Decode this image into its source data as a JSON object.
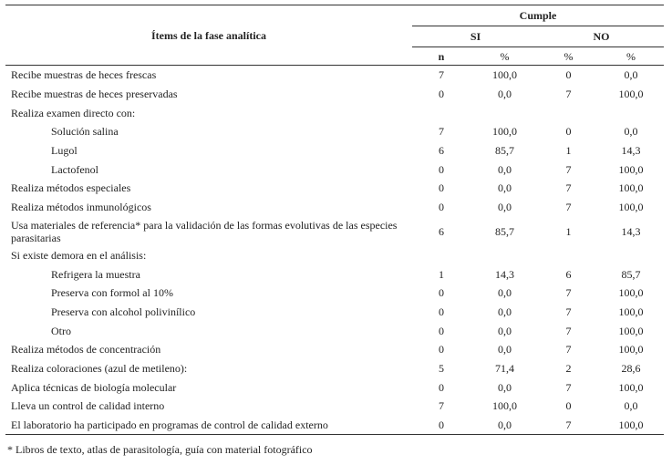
{
  "table": {
    "item_header": "Ítems de la fase analítica",
    "group_header": "Cumple",
    "si_label": "SI",
    "no_label": "NO",
    "units": [
      "n",
      "%",
      "%",
      "%"
    ],
    "rows": [
      {
        "label": "Recibe muestras de heces frescas",
        "indent": false,
        "values": [
          "7",
          "100,0",
          "0",
          "0,0"
        ]
      },
      {
        "label": "Recibe muestras de heces preservadas",
        "indent": false,
        "values": [
          "0",
          "0,0",
          "7",
          "100,0"
        ]
      },
      {
        "label": "Realiza examen directo con:",
        "indent": false,
        "values": [
          "",
          "",
          "",
          ""
        ]
      },
      {
        "label": "Solución salina",
        "indent": true,
        "values": [
          "7",
          "100,0",
          "0",
          "0,0"
        ]
      },
      {
        "label": "Lugol",
        "indent": true,
        "values": [
          "6",
          "85,7",
          "1",
          "14,3"
        ]
      },
      {
        "label": "Lactofenol",
        "indent": true,
        "values": [
          "0",
          "0,0",
          "7",
          "100,0"
        ]
      },
      {
        "label": "Realiza métodos especiales",
        "indent": false,
        "values": [
          "0",
          "0,0",
          "7",
          "100,0"
        ]
      },
      {
        "label": "Realiza métodos inmunológicos",
        "indent": false,
        "values": [
          "0",
          "0,0",
          "7",
          "100,0"
        ]
      },
      {
        "label": "Usa materiales de referencia* para la validación de las formas evolutivas de las especies parasitarias",
        "indent": false,
        "values": [
          "6",
          "85,7",
          "1",
          "14,3"
        ],
        "tall": true
      },
      {
        "label": "Si existe demora en el análisis:",
        "indent": false,
        "values": [
          "",
          "",
          "",
          ""
        ]
      },
      {
        "label": "Refrigera la muestra",
        "indent": true,
        "values": [
          "1",
          "14,3",
          "6",
          "85,7"
        ]
      },
      {
        "label": "Preserva con formol al 10%",
        "indent": true,
        "values": [
          "0",
          "0,0",
          "7",
          "100,0"
        ]
      },
      {
        "label": "Preserva con alcohol polivinílico",
        "indent": true,
        "values": [
          "0",
          "0,0",
          "7",
          "100,0"
        ]
      },
      {
        "label": "Otro",
        "indent": true,
        "values": [
          "0",
          "0,0",
          "7",
          "100,0"
        ]
      },
      {
        "label": "Realiza métodos de concentración",
        "indent": false,
        "values": [
          "0",
          "0,0",
          "7",
          "100,0"
        ]
      },
      {
        "label": "Realiza coloraciones (azul de metileno):",
        "indent": false,
        "values": [
          "5",
          "71,4",
          "2",
          "28,6"
        ]
      },
      {
        "label": "Aplica técnicas de biología molecular",
        "indent": false,
        "values": [
          "0",
          "0,0",
          "7",
          "100,0"
        ]
      },
      {
        "label": "Lleva un control de calidad interno",
        "indent": false,
        "values": [
          "7",
          "100,0",
          "0",
          "0,0"
        ]
      },
      {
        "label": "El laboratorio ha participado en programas de control de calidad externo",
        "indent": false,
        "values": [
          "0",
          "0,0",
          "7",
          "100,0"
        ]
      }
    ]
  },
  "footnote": "* Libros de texto, atlas de parasitología, guía con material fotográfico"
}
